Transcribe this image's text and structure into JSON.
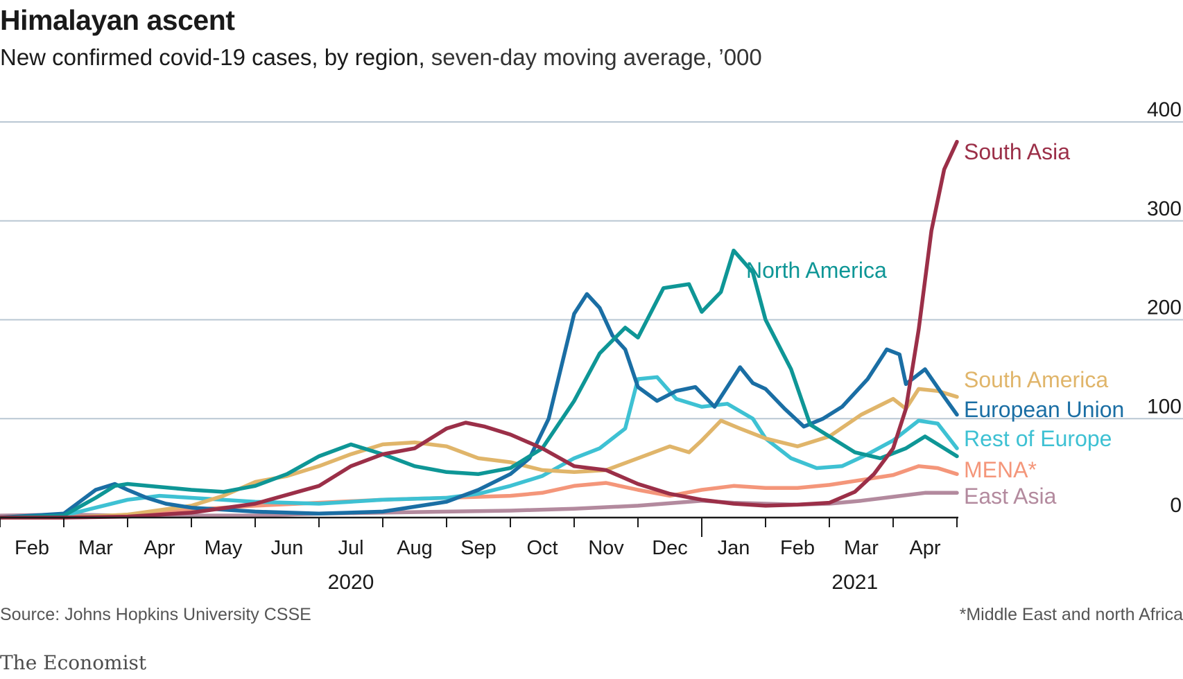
{
  "header": {
    "title": "Himalayan ascent",
    "subtitle_main": "New confirmed covid-19 cases, by region,",
    "subtitle_rest": " seven-day moving average, ’000"
  },
  "footer": {
    "source": "Source: Johns Hopkins University CSSE",
    "note": "*Middle East and north Africa",
    "brand": "The Economist"
  },
  "chart_data": {
    "type": "line",
    "title": "Himalayan ascent",
    "subtitle": "New confirmed covid-19 cases, by region, seven-day moving average, ’000",
    "y_ticks": [
      "400",
      "300",
      "200",
      "100",
      "0"
    ],
    "ylim": [
      0,
      400
    ],
    "y_axis_side": "right",
    "grid": "horizontal",
    "x_months": [
      "Feb",
      "Mar",
      "Apr",
      "May",
      "Jun",
      "Jul",
      "Aug",
      "Sep",
      "Oct",
      "Nov",
      "Dec",
      "Jan",
      "Feb",
      "Mar",
      "Apr"
    ],
    "x_years": [
      "2020",
      "2021"
    ],
    "xlim": [
      0,
      15
    ],
    "x_unit": "months since Feb 1st 2020",
    "legend": "direct labels at line ends (right)",
    "series": [
      {
        "name": "East Asia",
        "color": "#b38a9e",
        "points": [
          [
            0,
            2
          ],
          [
            1,
            3
          ],
          [
            2,
            2
          ],
          [
            3,
            2
          ],
          [
            4,
            2
          ],
          [
            5,
            4
          ],
          [
            6,
            5
          ],
          [
            7,
            6
          ],
          [
            8,
            7
          ],
          [
            9,
            9
          ],
          [
            10,
            12
          ],
          [
            11,
            17
          ],
          [
            11.5,
            15
          ],
          [
            12,
            14
          ],
          [
            12.5,
            13
          ],
          [
            13,
            14
          ],
          [
            13.5,
            17
          ],
          [
            14,
            21
          ],
          [
            14.5,
            25
          ],
          [
            15,
            25
          ]
        ]
      },
      {
        "name": "MENA*",
        "color": "#f4967a",
        "points": [
          [
            0,
            0
          ],
          [
            1,
            0
          ],
          [
            1.5,
            1
          ],
          [
            2,
            3
          ],
          [
            3,
            8
          ],
          [
            4,
            12
          ],
          [
            5,
            15
          ],
          [
            6,
            18
          ],
          [
            7,
            20
          ],
          [
            8,
            22
          ],
          [
            8.5,
            25
          ],
          [
            9,
            32
          ],
          [
            9.5,
            35
          ],
          [
            10,
            28
          ],
          [
            10.5,
            22
          ],
          [
            11,
            28
          ],
          [
            11.5,
            32
          ],
          [
            12,
            30
          ],
          [
            12.5,
            30
          ],
          [
            13,
            33
          ],
          [
            13.5,
            38
          ],
          [
            14,
            43
          ],
          [
            14.4,
            52
          ],
          [
            14.7,
            50
          ],
          [
            15,
            44
          ]
        ]
      },
      {
        "name": "Rest of Europe",
        "color": "#3ec1d3",
        "points": [
          [
            0,
            0
          ],
          [
            1,
            2
          ],
          [
            1.5,
            10
          ],
          [
            2,
            18
          ],
          [
            2.5,
            22
          ],
          [
            3,
            20
          ],
          [
            4,
            16
          ],
          [
            5,
            14
          ],
          [
            6,
            18
          ],
          [
            7,
            20
          ],
          [
            7.5,
            24
          ],
          [
            8,
            32
          ],
          [
            8.5,
            42
          ],
          [
            9,
            60
          ],
          [
            9.4,
            70
          ],
          [
            9.8,
            90
          ],
          [
            10,
            140
          ],
          [
            10.3,
            142
          ],
          [
            10.6,
            120
          ],
          [
            11,
            112
          ],
          [
            11.4,
            115
          ],
          [
            11.8,
            100
          ],
          [
            12,
            80
          ],
          [
            12.4,
            60
          ],
          [
            12.8,
            50
          ],
          [
            13.2,
            52
          ],
          [
            13.6,
            64
          ],
          [
            14,
            78
          ],
          [
            14.4,
            98
          ],
          [
            14.7,
            95
          ],
          [
            15,
            70
          ]
        ]
      },
      {
        "name": "South America",
        "color": "#e0b56a",
        "points": [
          [
            0,
            0
          ],
          [
            1,
            0
          ],
          [
            2,
            3
          ],
          [
            3,
            12
          ],
          [
            3.5,
            22
          ],
          [
            4,
            36
          ],
          [
            4.5,
            42
          ],
          [
            5,
            52
          ],
          [
            5.5,
            64
          ],
          [
            6,
            74
          ],
          [
            6.5,
            76
          ],
          [
            7,
            72
          ],
          [
            7.5,
            60
          ],
          [
            8,
            56
          ],
          [
            8.5,
            48
          ],
          [
            9,
            46
          ],
          [
            9.5,
            48
          ],
          [
            10,
            60
          ],
          [
            10.5,
            72
          ],
          [
            10.8,
            66
          ],
          [
            11,
            78
          ],
          [
            11.3,
            98
          ],
          [
            11.6,
            90
          ],
          [
            12,
            80
          ],
          [
            12.5,
            72
          ],
          [
            13,
            82
          ],
          [
            13.5,
            104
          ],
          [
            14,
            120
          ],
          [
            14.2,
            110
          ],
          [
            14.4,
            130
          ],
          [
            14.7,
            128
          ],
          [
            15,
            122
          ]
        ]
      },
      {
        "name": "European Union",
        "color": "#1a6ea4",
        "points": [
          [
            0,
            0
          ],
          [
            1,
            4
          ],
          [
            1.5,
            28
          ],
          [
            1.8,
            34
          ],
          [
            2,
            28
          ],
          [
            2.3,
            20
          ],
          [
            2.6,
            14
          ],
          [
            3,
            10
          ],
          [
            4,
            6
          ],
          [
            5,
            4
          ],
          [
            6,
            6
          ],
          [
            7,
            16
          ],
          [
            7.5,
            28
          ],
          [
            8,
            44
          ],
          [
            8.3,
            60
          ],
          [
            8.6,
            100
          ],
          [
            9,
            206
          ],
          [
            9.2,
            226
          ],
          [
            9.4,
            212
          ],
          [
            9.6,
            184
          ],
          [
            9.8,
            170
          ],
          [
            10,
            132
          ],
          [
            10.3,
            118
          ],
          [
            10.6,
            128
          ],
          [
            10.9,
            132
          ],
          [
            11.2,
            112
          ],
          [
            11.4,
            132
          ],
          [
            11.6,
            152
          ],
          [
            11.8,
            136
          ],
          [
            12,
            130
          ],
          [
            12.3,
            110
          ],
          [
            12.6,
            92
          ],
          [
            12.9,
            100
          ],
          [
            13.2,
            112
          ],
          [
            13.6,
            140
          ],
          [
            13.9,
            170
          ],
          [
            14.1,
            165
          ],
          [
            14.2,
            135
          ],
          [
            14.5,
            150
          ],
          [
            14.8,
            122
          ],
          [
            15,
            104
          ]
        ]
      },
      {
        "name": "North America",
        "color": "#0e9696",
        "points": [
          [
            0,
            0
          ],
          [
            1,
            2
          ],
          [
            1.5,
            20
          ],
          [
            1.8,
            32
          ],
          [
            2,
            34
          ],
          [
            2.5,
            31
          ],
          [
            3,
            28
          ],
          [
            3.5,
            26
          ],
          [
            4,
            32
          ],
          [
            4.5,
            44
          ],
          [
            5,
            62
          ],
          [
            5.5,
            74
          ],
          [
            6,
            64
          ],
          [
            6.5,
            52
          ],
          [
            7,
            46
          ],
          [
            7.5,
            44
          ],
          [
            8,
            50
          ],
          [
            8.5,
            70
          ],
          [
            9,
            118
          ],
          [
            9.4,
            166
          ],
          [
            9.8,
            192
          ],
          [
            10,
            182
          ],
          [
            10.4,
            232
          ],
          [
            10.8,
            236
          ],
          [
            11,
            208
          ],
          [
            11.3,
            228
          ],
          [
            11.5,
            270
          ],
          [
            11.8,
            248
          ],
          [
            12,
            200
          ],
          [
            12.4,
            150
          ],
          [
            12.7,
            94
          ],
          [
            13,
            82
          ],
          [
            13.4,
            66
          ],
          [
            13.8,
            60
          ],
          [
            14.2,
            70
          ],
          [
            14.5,
            82
          ],
          [
            14.8,
            70
          ],
          [
            15,
            62
          ]
        ]
      },
      {
        "name": "South Asia",
        "color": "#9b2f48",
        "points": [
          [
            0,
            0
          ],
          [
            1,
            0
          ],
          [
            2,
            1
          ],
          [
            3,
            5
          ],
          [
            4,
            14
          ],
          [
            5,
            32
          ],
          [
            5.5,
            52
          ],
          [
            6,
            64
          ],
          [
            6.5,
            70
          ],
          [
            7,
            90
          ],
          [
            7.3,
            96
          ],
          [
            7.6,
            92
          ],
          [
            8,
            84
          ],
          [
            8.5,
            70
          ],
          [
            9,
            52
          ],
          [
            9.5,
            48
          ],
          [
            10,
            34
          ],
          [
            10.5,
            24
          ],
          [
            11,
            18
          ],
          [
            11.5,
            14
          ],
          [
            12,
            12
          ],
          [
            12.5,
            13
          ],
          [
            13,
            15
          ],
          [
            13.4,
            26
          ],
          [
            13.7,
            44
          ],
          [
            14,
            70
          ],
          [
            14.2,
            110
          ],
          [
            14.4,
            190
          ],
          [
            14.6,
            290
          ],
          [
            14.8,
            352
          ],
          [
            15,
            380
          ]
        ]
      }
    ]
  }
}
